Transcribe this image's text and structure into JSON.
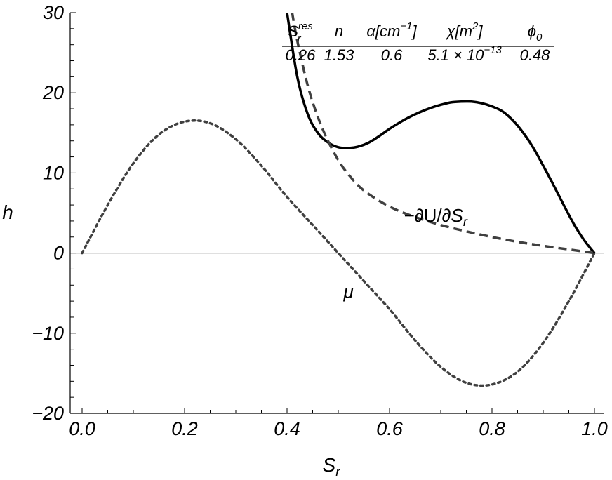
{
  "chart_data": {
    "type": "line",
    "xlabel": "S",
    "xlabel_sub": "r",
    "ylabel": "h",
    "xlim": [
      0,
      1
    ],
    "ylim": [
      -20,
      30
    ],
    "x_ticks": [
      {
        "value": 0.0,
        "label": "0.0"
      },
      {
        "value": 0.2,
        "label": "0.2"
      },
      {
        "value": 0.4,
        "label": "0.4"
      },
      {
        "value": 0.6,
        "label": "0.6"
      },
      {
        "value": 0.8,
        "label": "0.8"
      },
      {
        "value": 1.0,
        "label": "1.0"
      }
    ],
    "y_ticks": [
      {
        "value": -20,
        "label": "−20"
      },
      {
        "value": -10,
        "label": "−10"
      },
      {
        "value": 0,
        "label": "0"
      },
      {
        "value": 10,
        "label": "10"
      },
      {
        "value": 20,
        "label": "20"
      },
      {
        "value": 30,
        "label": "30"
      }
    ],
    "grid": false,
    "zero_line": true,
    "series": [
      {
        "style": "solid",
        "color": "#000000",
        "x": [
          0.4,
          0.42,
          0.44,
          0.46,
          0.48,
          0.5,
          0.52,
          0.54,
          0.56,
          0.58,
          0.6,
          0.62,
          0.64,
          0.66,
          0.68,
          0.7,
          0.72,
          0.74,
          0.76,
          0.78,
          0.8,
          0.82,
          0.84,
          0.86,
          0.88,
          0.9,
          0.92,
          0.94,
          0.96,
          0.98,
          1.0
        ],
        "y": [
          30.0,
          22.0,
          17.4,
          15.0,
          13.8,
          13.2,
          13.1,
          13.3,
          13.8,
          14.6,
          15.5,
          16.3,
          17.0,
          17.6,
          18.1,
          18.5,
          18.8,
          18.9,
          18.9,
          18.7,
          18.3,
          17.7,
          16.6,
          15.1,
          13.2,
          10.9,
          8.5,
          6.0,
          3.6,
          1.6,
          0.0
        ]
      },
      {
        "name": "−∂U/∂S",
        "name_sub": "r",
        "style": "dashed",
        "color": "#404040",
        "x": [
          0.41,
          0.42,
          0.44,
          0.46,
          0.48,
          0.5,
          0.52,
          0.55,
          0.6,
          0.65,
          0.7,
          0.75,
          0.8,
          0.85,
          0.9,
          0.95,
          1.0
        ],
        "y": [
          30.0,
          26.5,
          21.0,
          17.0,
          14.0,
          11.6,
          9.8,
          7.8,
          5.8,
          4.5,
          3.5,
          2.7,
          2.0,
          1.4,
          0.9,
          0.45,
          0.0
        ]
      },
      {
        "name": "μ",
        "style": "dotted",
        "color": "#404040",
        "x": [
          0.0,
          0.05,
          0.1,
          0.15,
          0.2,
          0.25,
          0.3,
          0.35,
          0.4,
          0.45,
          0.5,
          0.55,
          0.6,
          0.65,
          0.7,
          0.75,
          0.8,
          0.85,
          0.9,
          0.95,
          1.0
        ],
        "y": [
          0.0,
          6.0,
          11.2,
          14.8,
          16.4,
          16.2,
          14.2,
          10.9,
          7.0,
          3.5,
          0.0,
          -3.5,
          -7.0,
          -10.9,
          -14.2,
          -16.2,
          -16.4,
          -14.8,
          -11.2,
          -6.0,
          0.0
        ]
      }
    ],
    "annotations": [
      {
        "text": "−∂U/∂S",
        "sub": "r",
        "x": 0.69,
        "y": 3.9
      },
      {
        "text": "μ",
        "x": 0.52,
        "y": -5.6
      }
    ],
    "parameter_table": {
      "headers": [
        {
          "base": "S",
          "sub": "r",
          "sup": "res"
        },
        {
          "base": "n"
        },
        {
          "base": "α[cm",
          "sup": "−1",
          "tail": "]"
        },
        {
          "base": "χ[m",
          "sup": "2",
          "tail": "]"
        },
        {
          "base": "ϕ",
          "sub": "0"
        }
      ],
      "values": [
        {
          "base": "0.26"
        },
        {
          "base": "1.53"
        },
        {
          "base": "0.6"
        },
        {
          "base": "5.1 × 10",
          "sup": "−13"
        },
        {
          "base": "0.48"
        }
      ]
    }
  }
}
